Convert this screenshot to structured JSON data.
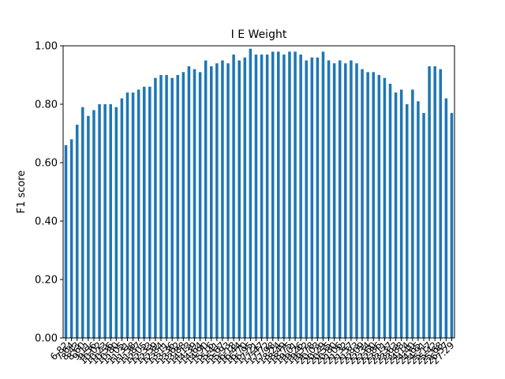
{
  "chart_data": {
    "type": "bar",
    "title": "I E Weight",
    "xlabel": "",
    "ylabel": "F1 score",
    "ylim": [
      0,
      1.0
    ],
    "yticks": [
      "0.00",
      "0.20",
      "0.40",
      "0.60",
      "0.80",
      "1.00"
    ],
    "bar_color": "#1f77b4",
    "grid": false,
    "categories": [
      "6.82",
      "7.64",
      "8.43",
      "8.60",
      "9.11",
      "9.56",
      "10.02",
      "10.23",
      "10.56",
      "10.80",
      "11.05",
      "11.31",
      "11.58",
      "11.87",
      "12.05",
      "12.33",
      "12.59",
      "12.84",
      "13.11",
      "13.36",
      "13.62",
      "13.88",
      "14.13",
      "14.39",
      "14.64",
      "14.90",
      "15.16",
      "15.41",
      "15.67",
      "15.93",
      "16.18",
      "16.44",
      "16.70",
      "16.95",
      "17.21",
      "17.47",
      "17.72",
      "17.98",
      "18.24",
      "18.49",
      "18.75",
      "19.01",
      "19.26",
      "19.52",
      "19.78",
      "20.03",
      "20.29",
      "20.55",
      "20.80",
      "21.06",
      "21.32",
      "21.57",
      "21.83",
      "22.09",
      "22.34",
      "22.60",
      "22.86",
      "23.11",
      "23.37",
      "23.63",
      "23.88",
      "24.14",
      "24.40",
      "24.65",
      "24.91",
      "25.17",
      "25.42",
      "25.68",
      "26.57",
      "27.29"
    ],
    "values": [
      0.66,
      0.68,
      0.73,
      0.79,
      0.76,
      0.78,
      0.8,
      0.8,
      0.8,
      0.79,
      0.82,
      0.84,
      0.84,
      0.85,
      0.86,
      0.86,
      0.89,
      0.9,
      0.9,
      0.89,
      0.9,
      0.91,
      0.93,
      0.92,
      0.91,
      0.95,
      0.93,
      0.94,
      0.95,
      0.94,
      0.97,
      0.95,
      0.96,
      0.99,
      0.97,
      0.97,
      0.97,
      0.98,
      0.98,
      0.97,
      0.98,
      0.98,
      0.97,
      0.95,
      0.96,
      0.96,
      0.98,
      0.95,
      0.94,
      0.95,
      0.94,
      0.95,
      0.94,
      0.92,
      0.91,
      0.91,
      0.9,
      0.89,
      0.87,
      0.84,
      0.85,
      0.8,
      0.85,
      0.81,
      0.77,
      0.93,
      0.93,
      0.92,
      0.82,
      0.77
    ]
  }
}
